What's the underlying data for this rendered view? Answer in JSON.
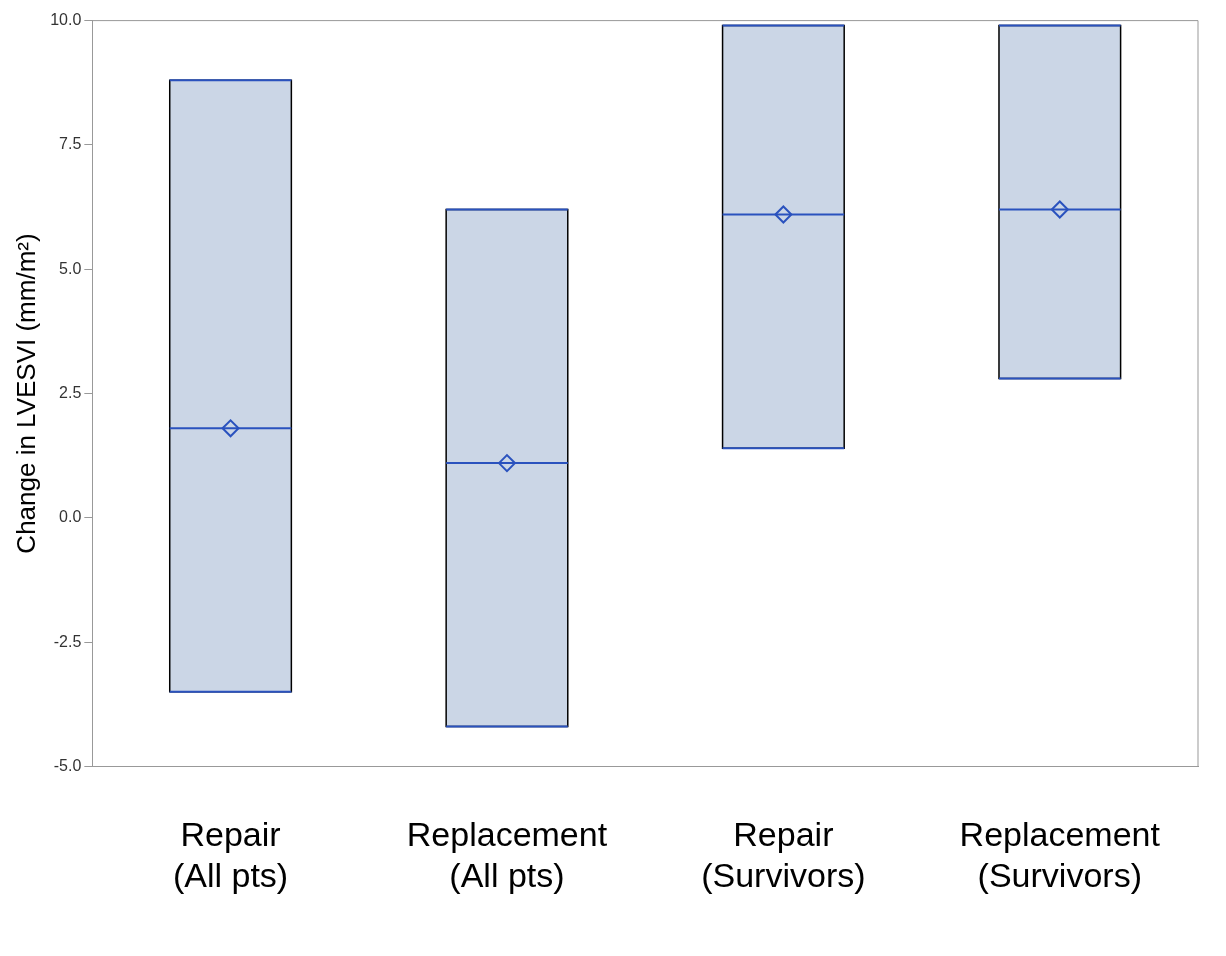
{
  "chart_data": {
    "type": "box",
    "ylabel": "Change in LVESVI (mm/m²)",
    "categories": [
      "Repair (All pts)",
      "Replacement (All pts)",
      "Repair (Survivors)",
      "Replacement (Survivors)"
    ],
    "boxes": [
      {
        "low": -3.5,
        "q1": -3.5,
        "median": 1.8,
        "q3": 8.8,
        "high": 8.8,
        "mean": 1.8
      },
      {
        "low": -4.2,
        "q1": -4.2,
        "median": 1.1,
        "q3": 6.2,
        "high": 6.2,
        "mean": 1.1
      },
      {
        "low": 1.4,
        "q1": 1.4,
        "median": 6.1,
        "q3": 9.9,
        "high": 9.9,
        "mean": 6.1
      },
      {
        "low": 2.8,
        "q1": 2.8,
        "median": 6.2,
        "q3": 9.9,
        "high": 9.9,
        "mean": 6.2
      }
    ],
    "color": "#cbd6e6",
    "ylim": [
      -5,
      10
    ],
    "yticks": [
      {
        "value": -5,
        "label": "-5.0"
      },
      {
        "value": -2.5,
        "label": "-2.5"
      },
      {
        "value": 0,
        "label": "0.0"
      },
      {
        "value": 2.5,
        "label": "2.5"
      },
      {
        "value": 5,
        "label": "5.0"
      },
      {
        "value": 7.5,
        "label": "7.5"
      },
      {
        "value": 10,
        "label": "10.0"
      }
    ],
    "marker": "diamond",
    "grid": false,
    "legend": false
  }
}
